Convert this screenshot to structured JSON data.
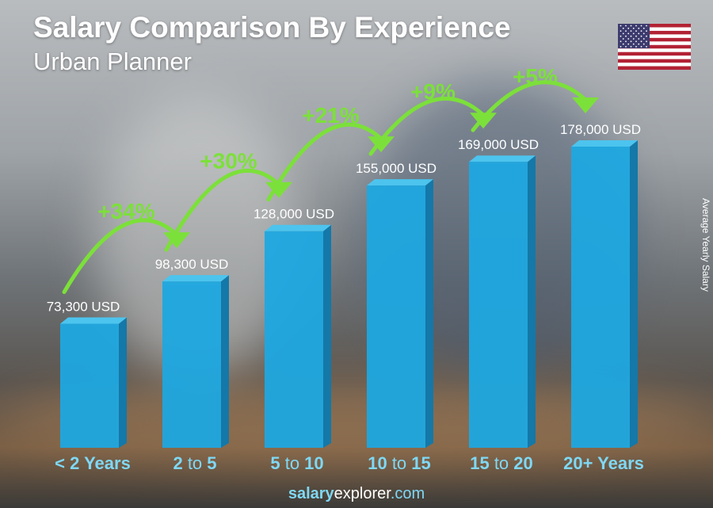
{
  "chart_data": {
    "type": "bar",
    "title": "Salary Comparison By Experience",
    "subtitle": "Urban Planner",
    "ylabel": "Average Yearly Salary",
    "categories": [
      "< 2 Years",
      "2 to 5",
      "5 to 10",
      "10 to 15",
      "15 to 20",
      "20+ Years"
    ],
    "values": [
      73300,
      98300,
      128000,
      155000,
      169000,
      178000
    ],
    "value_labels": [
      "73,300 USD",
      "98,300 USD",
      "128,000 USD",
      "155,000 USD",
      "169,000 USD",
      "178,000 USD"
    ],
    "increases": [
      "+34%",
      "+30%",
      "+21%",
      "+9%",
      "+5%"
    ],
    "ylim": [
      0,
      178000
    ],
    "grid": false,
    "colors": {
      "bar": "#1ea8e0",
      "bar_side": "#1478a8",
      "arrow": "#7ce03a",
      "category": "#7fd8f4"
    }
  },
  "flag": "us-flag",
  "footer": {
    "bold": "salary",
    "mid": "explorer",
    "end": ".com"
  }
}
